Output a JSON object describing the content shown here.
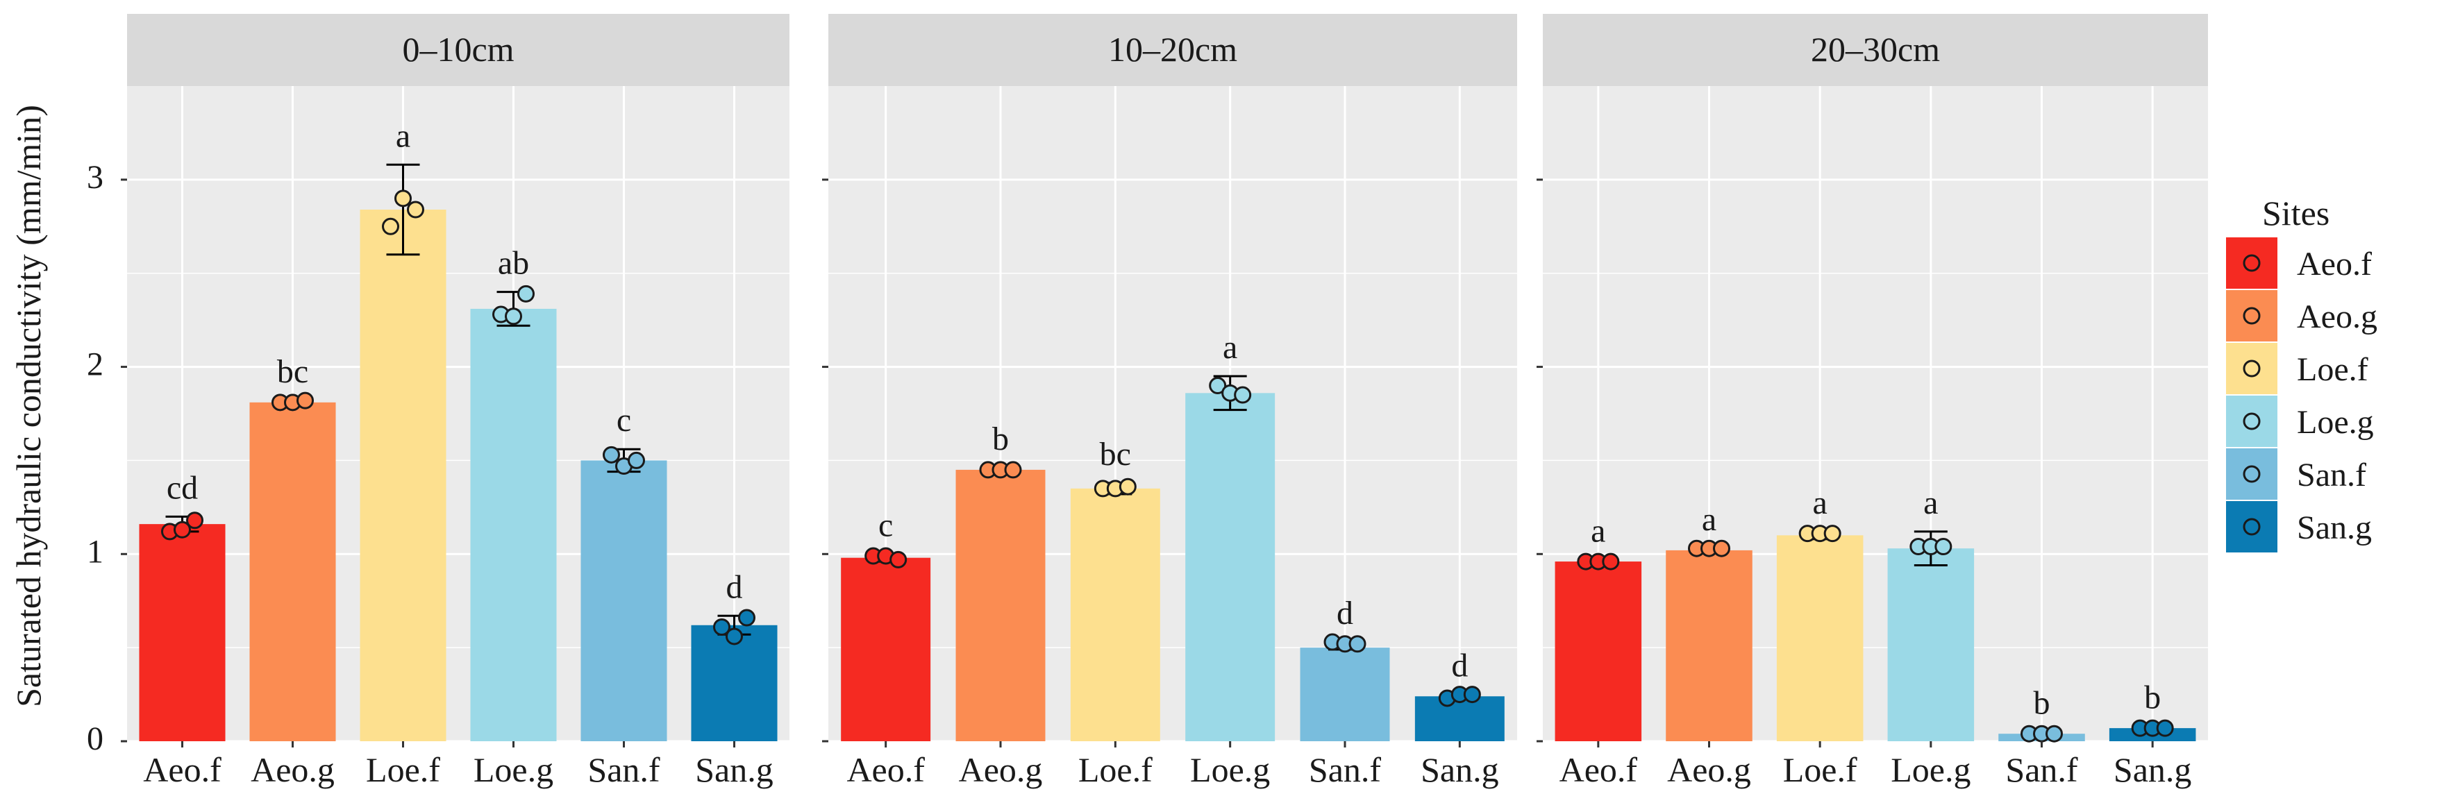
{
  "chart_data": {
    "type": "bar",
    "ylabel": "Saturated hydraulic conductivity (mm/min)",
    "ylim": [
      0,
      3.5
    ],
    "yticks": [
      0,
      1,
      2,
      3
    ],
    "categories": [
      "Aeo.f",
      "Aeo.g",
      "Loe.f",
      "Loe.g",
      "San.f",
      "San.g"
    ],
    "colors": {
      "Aeo.f": "#f52a22",
      "Aeo.g": "#fb8c52",
      "Loe.f": "#fde08f",
      "Loe.g": "#9bd9e7",
      "San.f": "#79bddd",
      "San.g": "#0b7bb3"
    },
    "legend": {
      "title": "Sites",
      "position": "right",
      "entries": [
        "Aeo.f",
        "Aeo.g",
        "Loe.f",
        "Loe.g",
        "San.f",
        "San.g"
      ]
    },
    "panels": [
      {
        "title": "0–10cm",
        "values": [
          1.16,
          1.81,
          2.84,
          2.31,
          1.5,
          0.62
        ],
        "errors": [
          0.04,
          0.01,
          0.24,
          0.09,
          0.06,
          0.05
        ],
        "letters": [
          "cd",
          "bc",
          "a",
          "ab",
          "c",
          "d"
        ],
        "points": [
          [
            1.12,
            1.13,
            1.18
          ],
          [
            1.81,
            1.81,
            1.82
          ],
          [
            2.75,
            2.9,
            2.84
          ],
          [
            2.28,
            2.27,
            2.39
          ],
          [
            1.53,
            1.47,
            1.5
          ],
          [
            0.61,
            0.56,
            0.66
          ]
        ]
      },
      {
        "title": "10–20cm",
        "values": [
          0.98,
          1.45,
          1.35,
          1.86,
          0.5,
          0.24
        ],
        "errors": [
          0.02,
          0.01,
          0.03,
          0.09,
          0.01,
          0.01
        ],
        "letters": [
          "c",
          "b",
          "bc",
          "a",
          "d",
          "d"
        ],
        "points": [
          [
            0.99,
            0.99,
            0.97
          ],
          [
            1.45,
            1.45,
            1.45
          ],
          [
            1.35,
            1.35,
            1.36
          ],
          [
            1.9,
            1.86,
            1.85
          ],
          [
            0.53,
            0.52,
            0.52
          ],
          [
            0.23,
            0.25,
            0.25
          ]
        ]
      },
      {
        "title": "20–30cm",
        "values": [
          0.96,
          1.02,
          1.1,
          1.03,
          0.04,
          0.07
        ],
        "errors": [
          0.01,
          0.01,
          0.02,
          0.09,
          0.01,
          0.01
        ],
        "letters": [
          "a",
          "a",
          "a",
          "a",
          "b",
          "b"
        ],
        "points": [
          [
            0.96,
            0.96,
            0.96
          ],
          [
            1.03,
            1.03,
            1.03
          ],
          [
            1.11,
            1.11,
            1.11
          ],
          [
            1.04,
            1.04,
            1.04
          ],
          [
            0.04,
            0.04,
            0.04
          ],
          [
            0.07,
            0.07,
            0.07
          ]
        ]
      }
    ]
  }
}
